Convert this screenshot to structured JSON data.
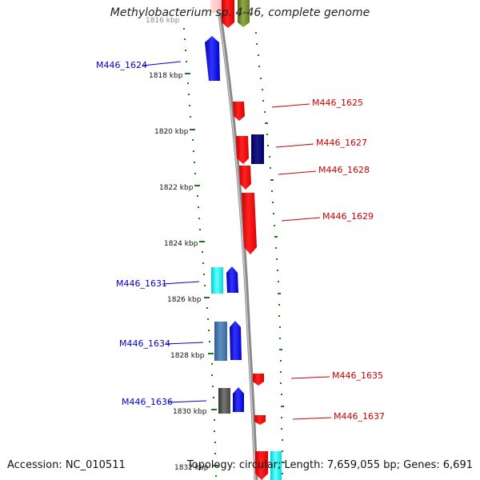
{
  "title": "Methylobacterium sp. 4-46, complete genome",
  "accession_text": "Accession: NC_010511",
  "summary_text": "Topology: circular; Length: 7,659,055 bp; Genes: 6,691",
  "ticks": [
    "1818 kbp",
    "1820 kbp",
    "1822 kbp",
    "1824 kbp",
    "1826 kbp",
    "1828 kbp",
    "1830 kbp",
    "1832 kbp"
  ],
  "left_labels": [
    "M446_1624",
    "M446_1631",
    "M446_1634",
    "M446_1636"
  ],
  "right_labels": [
    "M446_1625",
    "M446_1627",
    "M446_1628",
    "M446_1629",
    "M446_1635",
    "M446_1637"
  ],
  "colors": {
    "forward_label": "#0000cc",
    "reverse_label": "#cc0000",
    "backbone": "#8c8c8c",
    "tick": "#1a7a1a"
  }
}
